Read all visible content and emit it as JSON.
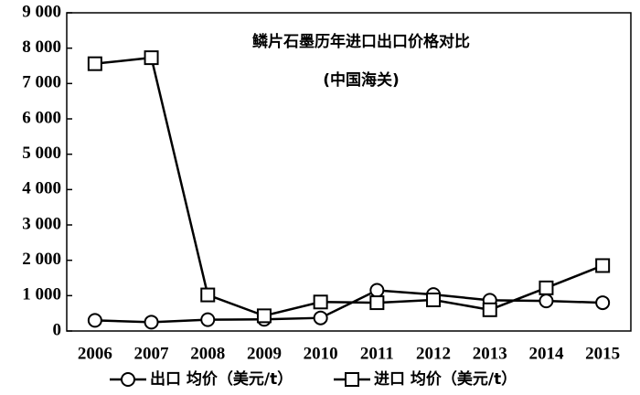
{
  "chart_data": {
    "type": "line",
    "title": "鳞片石墨历年进口出口价格对比",
    "subtitle": "(中国海关)",
    "categories": [
      "2006",
      "2007",
      "2008",
      "2009",
      "2010",
      "2011",
      "2012",
      "2013",
      "2014",
      "2015"
    ],
    "series": [
      {
        "name": "出口 均价（美元/t）",
        "color": "#000000",
        "marker": "circle",
        "values": [
          300,
          250,
          320,
          330,
          370,
          1150,
          1030,
          870,
          850,
          800
        ]
      },
      {
        "name": "进口 均价（美元/t）",
        "color": "#000000",
        "marker": "square",
        "values": [
          7560,
          7730,
          1020,
          430,
          820,
          800,
          880,
          600,
          1220,
          1850
        ]
      }
    ],
    "ylim": [
      0,
      9000
    ],
    "yticks": [
      0,
      {
        "value": 1000,
        "label": "1 000"
      },
      {
        "value": 2000,
        "label": "2 000"
      },
      {
        "value": 3000,
        "label": "3 000"
      },
      {
        "value": 4000,
        "label": "4 000"
      },
      {
        "value": 5000,
        "label": "5 000"
      },
      {
        "value": 6000,
        "label": "6 000"
      },
      {
        "value": 7000,
        "label": "7 000"
      },
      {
        "value": 8000,
        "label": "8 000"
      },
      {
        "value": 9000,
        "label": "9 000"
      }
    ],
    "grid": false,
    "legend": "bottom"
  }
}
